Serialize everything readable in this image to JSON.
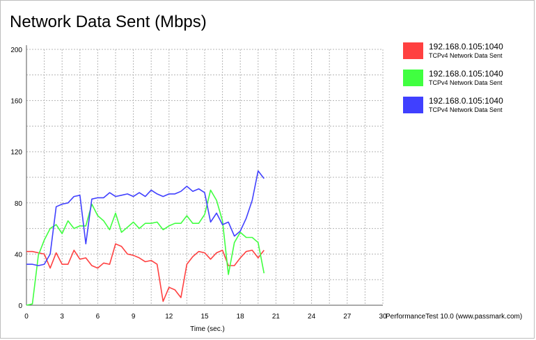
{
  "chart_data": {
    "type": "line",
    "title": "Network Data Sent (Mbps)",
    "xlabel": "Time (sec.)",
    "ylabel": "",
    "xlim": [
      0,
      30
    ],
    "ylim": [
      0,
      200
    ],
    "x_ticks": [
      0,
      3,
      6,
      9,
      12,
      15,
      18,
      21,
      24,
      27,
      30
    ],
    "y_ticks": [
      0,
      40,
      80,
      120,
      160,
      200
    ],
    "grid": true,
    "legend_position": "right",
    "x": [
      0,
      0.5,
      1,
      1.5,
      2,
      2.5,
      3,
      3.5,
      4,
      4.5,
      5,
      5.5,
      6,
      6.5,
      7,
      7.5,
      8,
      8.5,
      9,
      9.5,
      10,
      10.5,
      11,
      11.5,
      12,
      12.5,
      13,
      13.5,
      14,
      14.5,
      15,
      15.5,
      16,
      16.5,
      17,
      17.5,
      18,
      18.5,
      19,
      19.5,
      20
    ],
    "series": [
      {
        "name": "192.168.0.105:1040",
        "sublabel": "TCPv4 Network Data Sent",
        "color": "#ff4040",
        "values": [
          42,
          42,
          41,
          40,
          29,
          41,
          32,
          32,
          43,
          36,
          37,
          31,
          29,
          33,
          32,
          48,
          46,
          40,
          39,
          37,
          34,
          35,
          32,
          3,
          14,
          12,
          6,
          32,
          38,
          42,
          41,
          36,
          41,
          43,
          31,
          31,
          37,
          42,
          43,
          37,
          43
        ]
      },
      {
        "name": "192.168.0.105:1040",
        "sublabel": "TCPv4 Network Data Sent",
        "color": "#40ff40",
        "values": [
          0,
          1,
          39,
          51,
          60,
          63,
          56,
          66,
          60,
          62,
          62,
          79,
          70,
          66,
          59,
          72,
          57,
          61,
          65,
          60,
          64,
          64,
          65,
          59,
          62,
          64,
          64,
          70,
          64,
          64,
          71,
          90,
          82,
          66,
          24,
          49,
          57,
          53,
          53,
          49,
          25
        ]
      },
      {
        "name": "192.168.0.105:1040",
        "sublabel": "TCPv4 Network Data Sent",
        "color": "#4040ff",
        "values": [
          32,
          32,
          31,
          32,
          40,
          77,
          79,
          80,
          85,
          86,
          48,
          83,
          84,
          84,
          88,
          85,
          86,
          87,
          85,
          88,
          85,
          90,
          87,
          85,
          87,
          87,
          89,
          93,
          89,
          91,
          88,
          65,
          72,
          63,
          65,
          54,
          58,
          68,
          82,
          105,
          99
        ]
      }
    ]
  },
  "credit": "PerformanceTest 10.0 (www.passmark.com)"
}
